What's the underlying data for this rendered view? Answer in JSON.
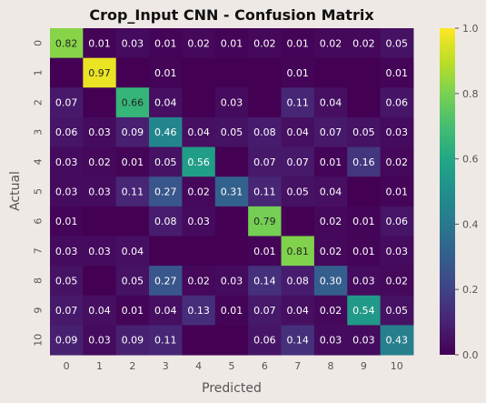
{
  "chart_data": {
    "type": "heatmap",
    "title": "Crop_Input CNN - Confusion Matrix",
    "xlabel": "Predicted",
    "ylabel": "Actual",
    "x_categories": [
      "0",
      "1",
      "2",
      "3",
      "4",
      "5",
      "6",
      "7",
      "8",
      "9",
      "10"
    ],
    "y_categories": [
      "0",
      "1",
      "2",
      "3",
      "4",
      "5",
      "6",
      "7",
      "8",
      "9",
      "10"
    ],
    "colormap": "viridis",
    "vmin": 0.0,
    "vmax": 1.0,
    "colorbar_ticks": [
      "0.0",
      "0.2",
      "0.4",
      "0.6",
      "0.8",
      "1.0"
    ],
    "values": [
      [
        0.82,
        0.01,
        0.03,
        0.01,
        0.02,
        0.01,
        0.02,
        0.01,
        0.02,
        0.02,
        0.05
      ],
      [
        0.0,
        0.97,
        0.0,
        0.01,
        0.0,
        0.0,
        0.0,
        0.01,
        0.0,
        0.0,
        0.01
      ],
      [
        0.07,
        0.0,
        0.66,
        0.04,
        0.0,
        0.03,
        0.0,
        0.11,
        0.04,
        0.0,
        0.06
      ],
      [
        0.06,
        0.03,
        0.09,
        0.46,
        0.04,
        0.05,
        0.08,
        0.04,
        0.07,
        0.05,
        0.03
      ],
      [
        0.03,
        0.02,
        0.01,
        0.05,
        0.56,
        0.0,
        0.07,
        0.07,
        0.01,
        0.16,
        0.02
      ],
      [
        0.03,
        0.03,
        0.11,
        0.27,
        0.02,
        0.31,
        0.11,
        0.05,
        0.04,
        0.0,
        0.01
      ],
      [
        0.01,
        0.0,
        0.0,
        0.08,
        0.03,
        0.0,
        0.79,
        0.0,
        0.02,
        0.01,
        0.06
      ],
      [
        0.03,
        0.03,
        0.04,
        0.0,
        0.0,
        0.0,
        0.01,
        0.81,
        0.02,
        0.01,
        0.03
      ],
      [
        0.05,
        0.0,
        0.05,
        0.27,
        0.02,
        0.03,
        0.14,
        0.08,
        0.3,
        0.03,
        0.02
      ],
      [
        0.07,
        0.04,
        0.01,
        0.04,
        0.13,
        0.01,
        0.07,
        0.04,
        0.02,
        0.54,
        0.05
      ],
      [
        0.09,
        0.03,
        0.09,
        0.11,
        0.0,
        0.0,
        0.06,
        0.14,
        0.03,
        0.03,
        0.43
      ]
    ],
    "labels": [
      [
        "0.82",
        "0.01",
        "0.03",
        "0.01",
        "0.02",
        "0.01",
        "0.02",
        "0.01",
        "0.02",
        "0.02",
        "0.05"
      ],
      [
        "",
        "0.97",
        "",
        "0.01",
        "",
        "",
        "",
        "0.01",
        "",
        "",
        "0.01"
      ],
      [
        "0.07",
        "",
        "0.66",
        "0.04",
        "",
        "0.03",
        "",
        "0.11",
        "0.04",
        "",
        "0.06"
      ],
      [
        "0.06",
        "0.03",
        "0.09",
        "0.46",
        "0.04",
        "0.05",
        "0.08",
        "0.04",
        "0.07",
        "0.05",
        "0.03"
      ],
      [
        "0.03",
        "0.02",
        "0.01",
        "0.05",
        "0.56",
        "",
        "0.07",
        "0.07",
        "0.01",
        "0.16",
        "0.02"
      ],
      [
        "0.03",
        "0.03",
        "0.11",
        "0.27",
        "0.02",
        "0.31",
        "0.11",
        "0.05",
        "0.04",
        "",
        "0.01"
      ],
      [
        "0.01",
        "",
        "",
        "0.08",
        "0.03",
        "",
        "0.79",
        "",
        "0.02",
        "0.01",
        "0.06"
      ],
      [
        "0.03",
        "0.03",
        "0.04",
        "",
        "",
        "",
        "0.01",
        "0.81",
        "0.02",
        "0.01",
        "0.03"
      ],
      [
        "0.05",
        "",
        "0.05",
        "0.27",
        "0.02",
        "0.03",
        "0.14",
        "0.08",
        "0.30",
        "0.03",
        "0.02"
      ],
      [
        "0.07",
        "0.04",
        "0.01",
        "0.04",
        "0.13",
        "0.01",
        "0.07",
        "0.04",
        "0.02",
        "0.54",
        "0.05"
      ],
      [
        "0.09",
        "0.03",
        "0.09",
        "0.11",
        "",
        "",
        "0.06",
        "0.14",
        "0.03",
        "0.03",
        "0.43"
      ]
    ]
  }
}
